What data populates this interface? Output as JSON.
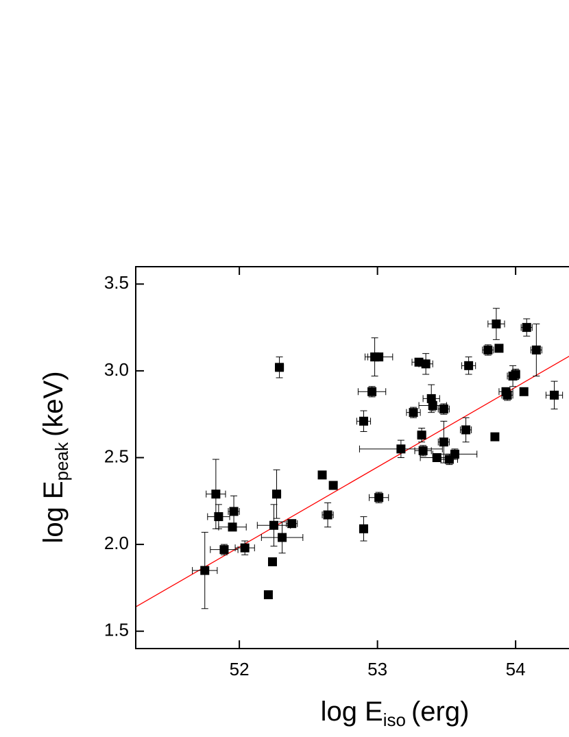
{
  "chart_data": {
    "type": "scatter",
    "xlabel": {
      "main": "log E",
      "sub": "iso",
      "unit": "(erg)"
    },
    "ylabel": {
      "main": "log E",
      "sub": "peak",
      "unit": "(keV)"
    },
    "xlim": [
      51.25,
      54.4
    ],
    "ylim": [
      1.4,
      3.6
    ],
    "xticks": [
      52,
      53,
      54
    ],
    "yticks": [
      1.5,
      {
        "value": 2.0,
        "label": "2.0"
      },
      2.5,
      {
        "value": 3.0,
        "label": "3.0"
      },
      3.5
    ],
    "color": "#000000",
    "x": [
      51.75,
      51.83,
      51.85,
      51.89,
      51.96,
      51.95,
      52.04,
      52.21,
      52.24,
      52.25,
      52.27,
      52.29,
      52.31,
      52.38,
      52.6,
      52.64,
      52.68,
      52.9,
      52.9,
      52.96,
      52.98,
      53.01,
      53.01,
      53.17,
      53.26,
      53.3,
      53.32,
      53.33,
      53.35,
      53.39,
      53.4,
      53.43,
      53.48,
      53.48,
      53.52,
      53.56,
      53.64,
      53.66,
      53.8,
      53.85,
      53.86,
      53.88,
      53.93,
      53.94,
      53.98,
      54.0,
      54.06,
      54.08,
      54.15,
      54.28
    ],
    "values": [
      1.85,
      2.29,
      2.16,
      1.97,
      2.19,
      2.1,
      1.98,
      1.71,
      1.9,
      2.11,
      2.29,
      3.02,
      2.04,
      2.12,
      2.4,
      2.17,
      2.34,
      2.09,
      2.71,
      2.88,
      3.08,
      3.08,
      2.27,
      2.55,
      2.76,
      3.05,
      2.63,
      2.54,
      3.04,
      2.84,
      2.8,
      2.5,
      2.78,
      2.59,
      2.49,
      2.52,
      2.66,
      3.03,
      3.12,
      2.62,
      3.27,
      3.13,
      2.88,
      2.86,
      2.97,
      2.98,
      2.88,
      3.25,
      3.12,
      2.86
    ],
    "xerr": [
      0.09,
      0.07,
      0.08,
      0.1,
      0.04,
      0.1,
      0.07,
      null,
      null,
      0.12,
      0.03,
      0.03,
      0.15,
      0.04,
      null,
      0.04,
      null,
      0.03,
      0.05,
      0.1,
      0.05,
      0.1,
      0.07,
      0.3,
      0.05,
      0.05,
      0.03,
      0.06,
      0.05,
      0.06,
      0.1,
      0.12,
      0.04,
      0.04,
      0.06,
      0.16,
      0.04,
      0.05,
      0.04,
      null,
      0.06,
      null,
      0.05,
      0.04,
      0.04,
      0.03,
      null,
      0.04,
      0.04,
      0.06
    ],
    "yerr": [
      0.22,
      0.2,
      0.07,
      0.03,
      0.09,
      0.02,
      0.04,
      null,
      null,
      0.12,
      0.14,
      0.06,
      0.09,
      0.02,
      null,
      0.07,
      null,
      0.07,
      0.06,
      0.03,
      0.11,
      0.02,
      0.03,
      0.05,
      0.03,
      0.02,
      0.04,
      0.03,
      0.06,
      0.08,
      0.03,
      0.02,
      0.03,
      0.12,
      0.03,
      0.03,
      0.07,
      0.05,
      0.03,
      null,
      0.09,
      null,
      0.02,
      0.03,
      0.06,
      0.03,
      null,
      0.05,
      0.15,
      0.08
    ],
    "fit": {
      "x": [
        51.25,
        54.4
      ],
      "values": [
        1.64,
        3.09
      ],
      "color": "#ff0000"
    }
  }
}
